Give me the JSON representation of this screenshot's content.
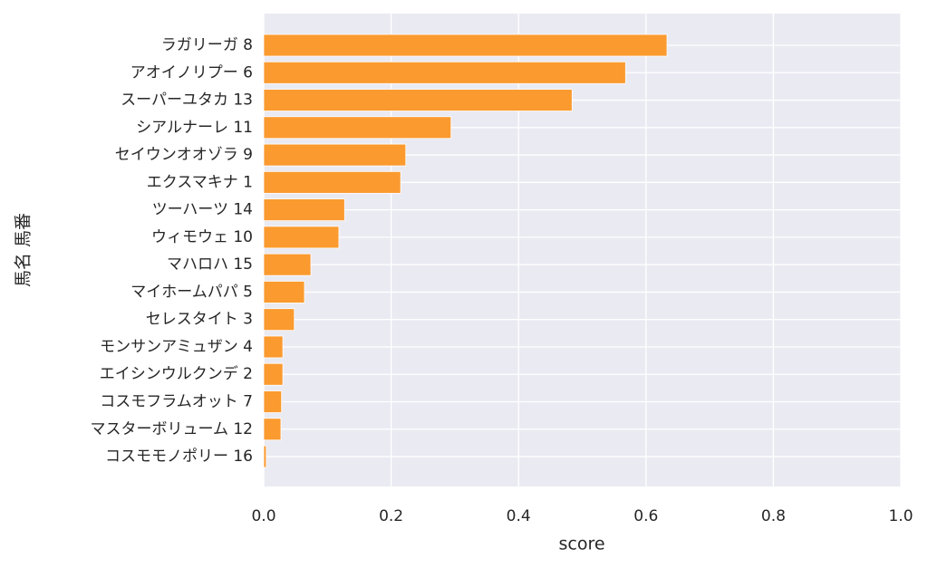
{
  "chart_data": {
    "type": "barh",
    "x_label": "score",
    "y_label": "馬名 馬番",
    "categories": [
      "ラガリーガ 8",
      "アオイノリプー 6",
      "スーパーユタカ 13",
      "シアルナーレ 11",
      "セイウンオオゾラ 9",
      "エクスマキナ 1",
      "ツーハーツ 14",
      "ウィモウェ 10",
      "マハロハ 15",
      "マイホームパパ 5",
      "セレスタイト 3",
      "モンサンアミュザン 4",
      "エイシンウルクンデ 2",
      "コスモフラムオット 7",
      "マスターボリューム 12",
      "コスモモノポリー 16"
    ],
    "values": [
      0.633,
      0.568,
      0.484,
      0.294,
      0.223,
      0.215,
      0.127,
      0.118,
      0.074,
      0.064,
      0.048,
      0.03,
      0.03,
      0.028,
      0.027,
      0.004
    ],
    "color": "#fa9a2f",
    "xlim": [
      0,
      1
    ],
    "xticks": [
      {
        "value": 0,
        "label": "0.0"
      },
      {
        "value": 0.2,
        "label": "0.2"
      },
      {
        "value": 0.4,
        "label": "0.4"
      },
      {
        "value": 0.6,
        "label": "0.6"
      },
      {
        "value": 0.8,
        "label": "0.8"
      },
      {
        "value": 1,
        "label": "1.0"
      }
    ],
    "grid": true
  }
}
